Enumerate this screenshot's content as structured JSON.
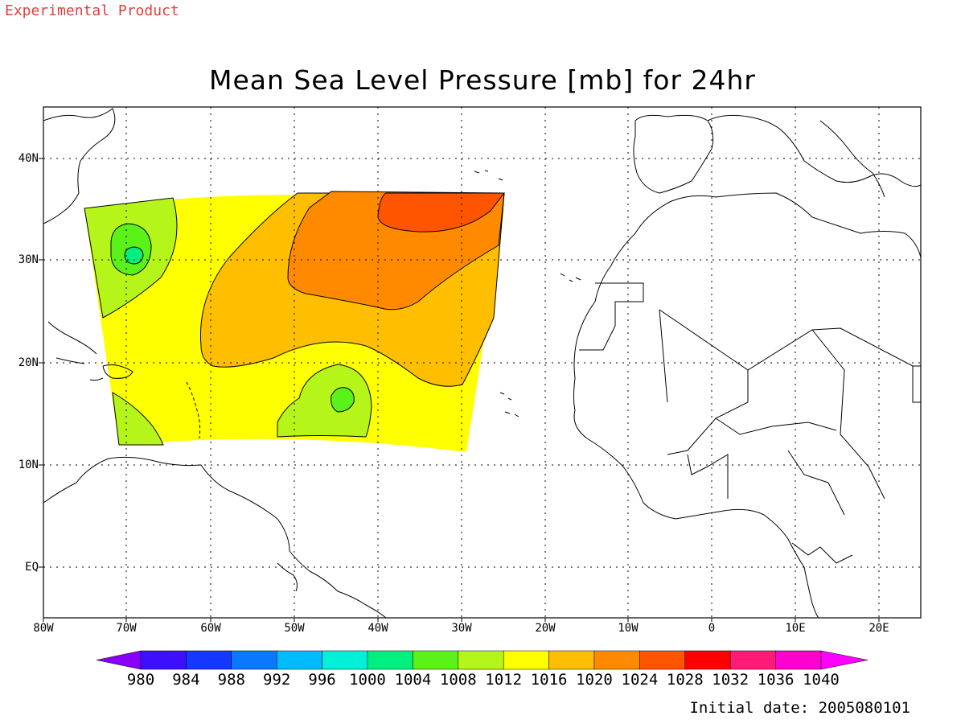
{
  "header": {
    "product_label": "Experimental Product",
    "title": "Mean Sea Level Pressure [mb] for 24hr"
  },
  "map": {
    "latitude_labels": [
      "40N",
      "30N",
      "20N",
      "10N",
      "EQ"
    ],
    "longitude_labels": [
      "80W",
      "70W",
      "60W",
      "50W",
      "40W",
      "30W",
      "20W",
      "10W",
      "0",
      "10E",
      "20E"
    ],
    "field_colors": {
      "lt1008": "#5bf21a",
      "r1008_1012": "#b6f51a",
      "r1012_1016": "#ffff00",
      "r1016_1020": "#ffbf00",
      "r1020_1024": "#ff8a00",
      "r1024_1028": "#ff5500"
    }
  },
  "colorbar": {
    "levels": [
      "980",
      "984",
      "988",
      "992",
      "996",
      "1000",
      "1004",
      "1008",
      "1012",
      "1016",
      "1020",
      "1024",
      "1028",
      "1032",
      "1036",
      "1040"
    ],
    "colors": [
      "#8a00ff",
      "#3c10ff",
      "#1438ff",
      "#0a78ff",
      "#00bbff",
      "#00f0d8",
      "#00f080",
      "#5bf21a",
      "#b6f51a",
      "#ffff00",
      "#ffbf00",
      "#ff8a00",
      "#ff5500",
      "#ff0000",
      "#ff1a78",
      "#ff00d0",
      "#ff00ff"
    ]
  },
  "footer": {
    "initial_date": "Initial date: 2005080101"
  }
}
